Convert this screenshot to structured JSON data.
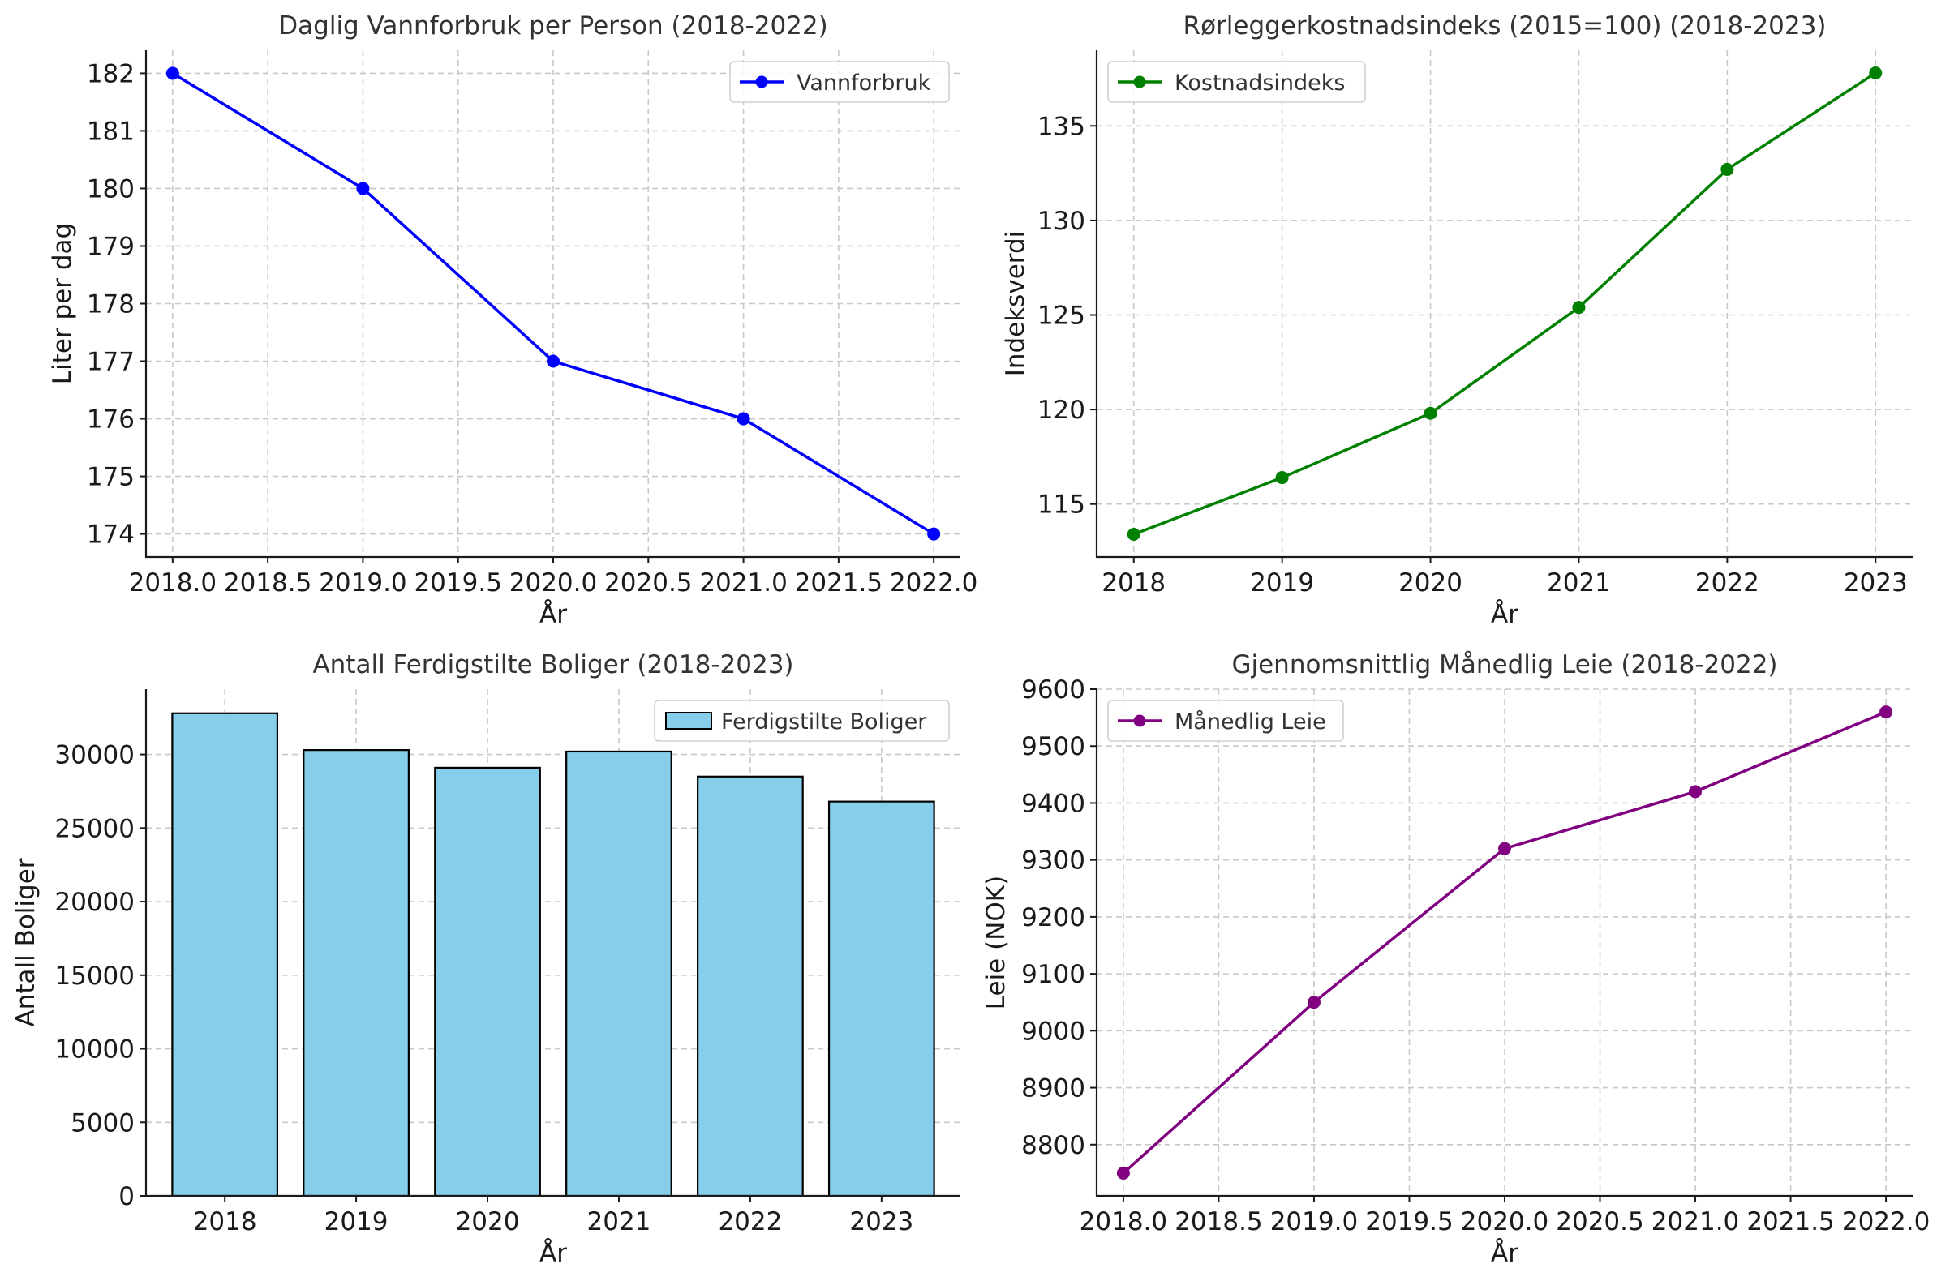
{
  "chart_data": [
    {
      "type": "line",
      "title": "Daglig Vannforbruk per Person (2018-2022)",
      "xlabel": "År",
      "ylabel": "Liter per dag",
      "x": [
        2018,
        2019,
        2020,
        2021,
        2022
      ],
      "series": [
        {
          "name": "Vannforbruk",
          "values": [
            182,
            180,
            177,
            176,
            174
          ],
          "color": "#0000ff"
        }
      ],
      "xticks": [
        "2018.0",
        "2018.5",
        "2019.0",
        "2019.5",
        "2020.0",
        "2020.5",
        "2021.0",
        "2021.5",
        "2022.0"
      ],
      "xtick_values": [
        2018.0,
        2018.5,
        2019.0,
        2019.5,
        2020.0,
        2020.5,
        2021.0,
        2021.5,
        2022.0
      ],
      "yticks": [
        "174",
        "175",
        "176",
        "177",
        "178",
        "179",
        "180",
        "181",
        "182"
      ],
      "ytick_values": [
        174,
        175,
        176,
        177,
        178,
        179,
        180,
        181,
        182
      ],
      "xlim": [
        2017.86,
        2022.14
      ],
      "ylim": [
        173.6,
        182.4
      ],
      "grid": true,
      "legend": "upper right"
    },
    {
      "type": "line",
      "title": "Rørleggerkostnadsindeks (2015=100) (2018-2023)",
      "xlabel": "År",
      "ylabel": "Indeksverdi",
      "x": [
        2018,
        2019,
        2020,
        2021,
        2022,
        2023
      ],
      "series": [
        {
          "name": "Kostnadsindeks",
          "values": [
            113.4,
            116.4,
            119.8,
            125.4,
            132.7,
            137.8
          ],
          "color": "#008000"
        }
      ],
      "xticks": [
        "2018",
        "2019",
        "2020",
        "2021",
        "2022",
        "2023"
      ],
      "xtick_values": [
        2018,
        2019,
        2020,
        2021,
        2022,
        2023
      ],
      "yticks": [
        "115",
        "120",
        "125",
        "130",
        "135"
      ],
      "ytick_values": [
        115,
        120,
        125,
        130,
        135
      ],
      "xlim": [
        2017.75,
        2023.25
      ],
      "ylim": [
        112.2,
        139.0
      ],
      "grid": true,
      "legend": "upper left"
    },
    {
      "type": "bar",
      "title": "Antall Ferdigstilte Boliger (2018-2023)",
      "xlabel": "År",
      "ylabel": "Antall Boliger",
      "categories": [
        "2018",
        "2019",
        "2020",
        "2021",
        "2022",
        "2023"
      ],
      "series": [
        {
          "name": "Ferdigstilte Boliger",
          "values": [
            32800,
            30300,
            29100,
            30200,
            28500,
            26800
          ],
          "color": "#87ceeb"
        }
      ],
      "yticks": [
        "0",
        "5000",
        "10000",
        "15000",
        "20000",
        "25000",
        "30000"
      ],
      "ytick_values": [
        0,
        5000,
        10000,
        15000,
        20000,
        25000,
        30000
      ],
      "ylim": [
        0,
        34440
      ],
      "grid": true,
      "legend": "upper right"
    },
    {
      "type": "line",
      "title": "Gjennomsnittlig Månedlig Leie (2018-2022)",
      "xlabel": "År",
      "ylabel": "Leie (NOK)",
      "x": [
        2018,
        2019,
        2020,
        2021,
        2022
      ],
      "series": [
        {
          "name": "Månedlig Leie",
          "values": [
            8750,
            9050,
            9320,
            9420,
            9560
          ],
          "color": "#800080"
        }
      ],
      "xticks": [
        "2018.0",
        "2018.5",
        "2019.0",
        "2019.5",
        "2020.0",
        "2020.5",
        "2021.0",
        "2021.5",
        "2022.0"
      ],
      "xtick_values": [
        2018.0,
        2018.5,
        2019.0,
        2019.5,
        2020.0,
        2020.5,
        2021.0,
        2021.5,
        2022.0
      ],
      "yticks": [
        "8800",
        "8900",
        "9000",
        "9100",
        "9200",
        "9300",
        "9400",
        "9500",
        "9600"
      ],
      "ytick_values": [
        8800,
        8900,
        9000,
        9100,
        9200,
        9300,
        9400,
        9500,
        9600
      ],
      "xlim": [
        2017.86,
        2022.14
      ],
      "ylim": [
        8710,
        9600
      ],
      "grid": true,
      "legend": "upper left"
    }
  ]
}
